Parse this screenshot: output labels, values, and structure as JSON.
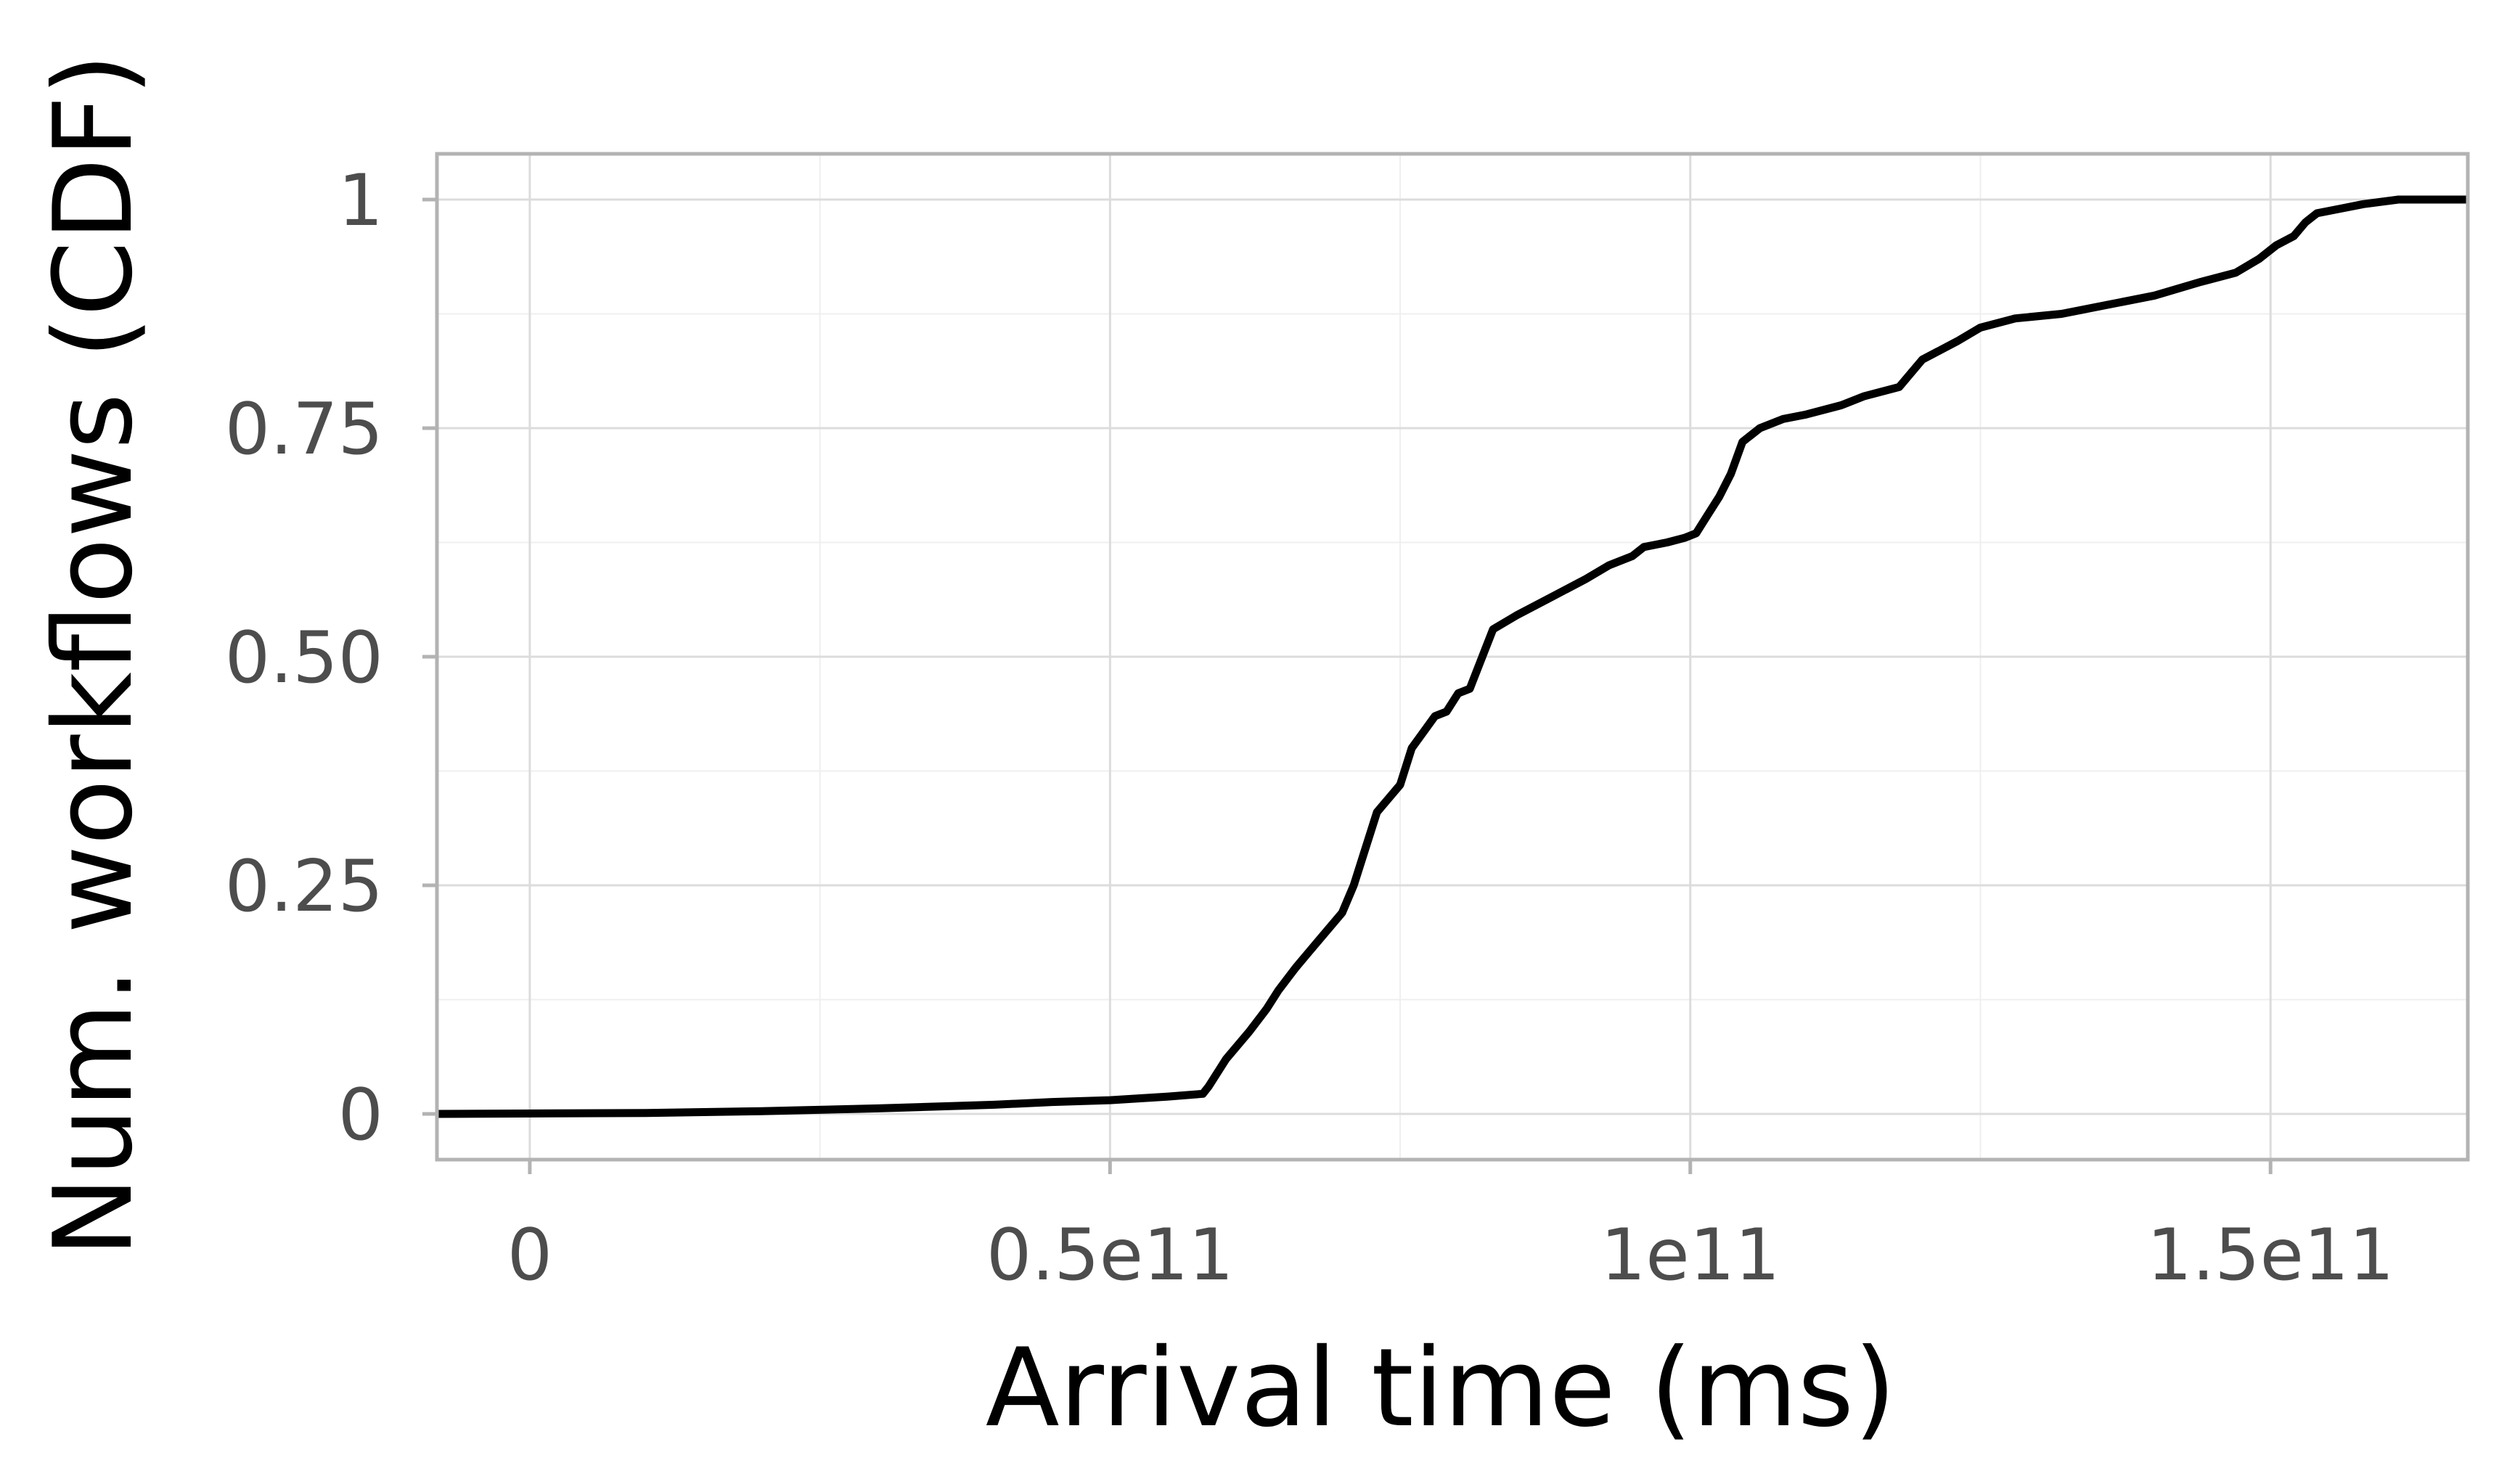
{
  "chart_data": {
    "type": "line",
    "title": "",
    "xlabel": "Arrival time (ms)",
    "ylabel": "Num. workflows (CDF)",
    "xlim": [
      -8000000000,
      167000000000
    ],
    "ylim": [
      -0.05,
      1.05
    ],
    "x_ticks": [
      {
        "value": 0,
        "label": "0"
      },
      {
        "value": 50000000000,
        "label": "0.5e11"
      },
      {
        "value": 100000000000,
        "label": "1e11"
      },
      {
        "value": 150000000000,
        "label": "1.5e11"
      }
    ],
    "y_ticks": [
      {
        "value": 0,
        "label": "0"
      },
      {
        "value": 0.25,
        "label": "0.25"
      },
      {
        "value": 0.5,
        "label": "0.50"
      },
      {
        "value": 0.75,
        "label": "0.75"
      },
      {
        "value": 1,
        "label": "1"
      }
    ],
    "grid": true,
    "series": [
      {
        "color": "#000000",
        "x": [
          -8000000000,
          10000000000,
          20000000000,
          30000000000,
          40000000000,
          45000000000,
          50000000000,
          55000000000,
          58000000000,
          58500000000,
          60000000000,
          62000000000,
          63500000000,
          64500000000,
          66000000000,
          67000000000,
          68000000000,
          69000000000,
          70000000000,
          71000000000,
          72000000000,
          73000000000,
          74000000000,
          75000000000,
          76000000000,
          78000000000,
          79000000000,
          80000000000,
          81000000000,
          83000000000,
          85000000000,
          88000000000,
          91000000000,
          93000000000,
          95000000000,
          96000000000,
          98000000000,
          99500000000,
          100500000000,
          101500000000,
          102500000000,
          103500000000,
          104500000000,
          106000000000,
          108000000000,
          110000000000,
          113000000000,
          115000000000,
          118000000000,
          120000000000,
          123000000000,
          125000000000,
          128000000000,
          132000000000,
          136000000000,
          140000000000,
          144000000000,
          147000000000,
          149000000000,
          150500000000,
          152000000000,
          153000000000,
          154000000000,
          156000000000,
          158000000000,
          161000000000,
          167000000000
        ],
        "y": [
          0,
          0.001,
          0.003,
          0.006,
          0.01,
          0.013,
          0.015,
          0.019,
          0.022,
          0.03,
          0.06,
          0.09,
          0.115,
          0.135,
          0.16,
          0.175,
          0.19,
          0.205,
          0.22,
          0.25,
          0.29,
          0.33,
          0.345,
          0.36,
          0.4,
          0.435,
          0.44,
          0.46,
          0.465,
          0.53,
          0.545,
          0.565,
          0.585,
          0.6,
          0.61,
          0.62,
          0.625,
          0.63,
          0.635,
          0.655,
          0.675,
          0.7,
          0.735,
          0.75,
          0.76,
          0.765,
          0.775,
          0.785,
          0.795,
          0.825,
          0.845,
          0.86,
          0.87,
          0.875,
          0.885,
          0.895,
          0.91,
          0.92,
          0.935,
          0.95,
          0.96,
          0.975,
          0.985,
          0.99,
          0.995,
          1.0,
          1.0
        ]
      }
    ]
  }
}
